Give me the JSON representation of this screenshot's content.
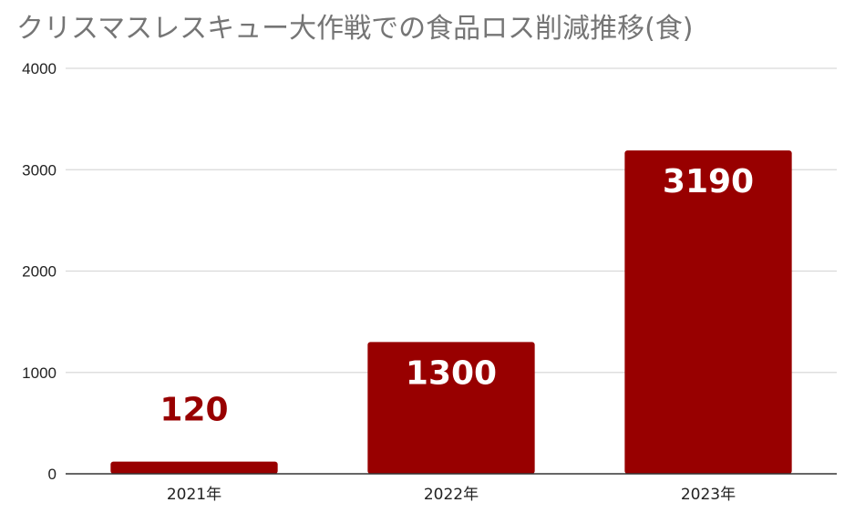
{
  "chart_data": {
    "type": "bar",
    "title": "クリスマスレスキュー大作戦での食品ロス削減推移(食)",
    "xlabel": "",
    "ylabel": "",
    "categories": [
      "2021年",
      "2022年",
      "2023年"
    ],
    "series": [
      {
        "values": [
          120,
          1300,
          3190
        ],
        "data_labels": [
          "120",
          "1300",
          "3190"
        ]
      }
    ],
    "ylim": [
      0,
      4000
    ],
    "yticks": [
      0,
      1000,
      2000,
      3000,
      4000
    ],
    "ytick_labels": [
      "0",
      "1000",
      "2000",
      "3000",
      "4000"
    ],
    "grid": true,
    "legend": "none",
    "colors": {
      "bar": "#980000",
      "inside_label": "#ffffff",
      "outside_label": "#980000",
      "grid": "#d9d9d9",
      "axis": "#333333",
      "title": "#757575"
    }
  }
}
